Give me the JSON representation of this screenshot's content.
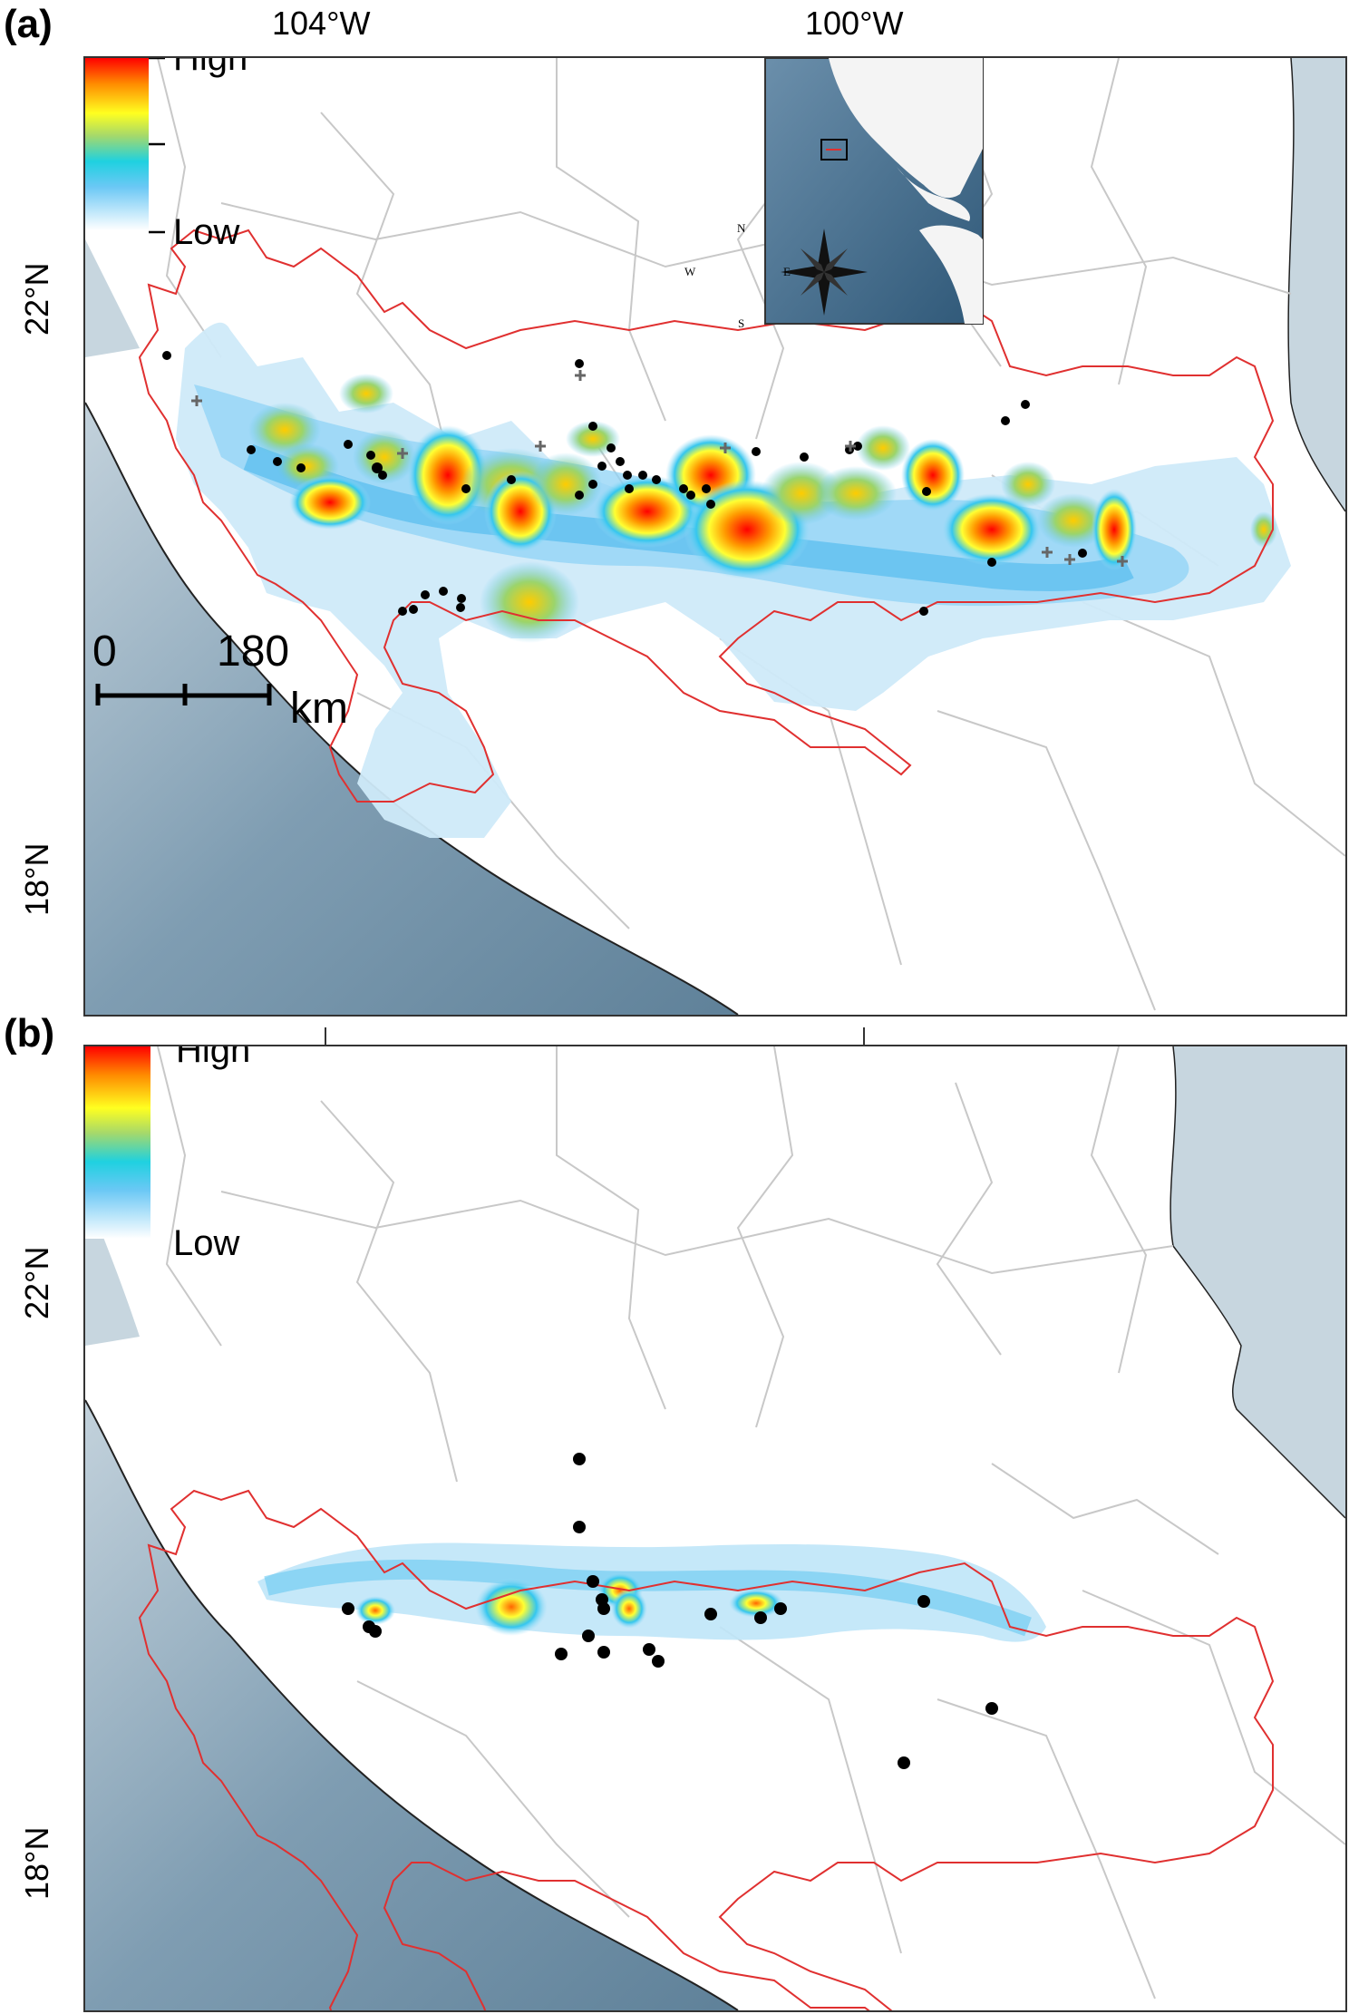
{
  "panels": [
    {
      "label": "(a)",
      "lon_labels": [
        "104°W",
        "100°W"
      ],
      "lat_labels": [
        "22°N",
        "18°N"
      ],
      "legend": {
        "high": "High",
        "low": "Low"
      },
      "scale_bar": {
        "start": "0",
        "end": "180",
        "unit": "km"
      },
      "inset": {
        "compass": {
          "n": "N",
          "s": "S",
          "e": "E",
          "w": "W"
        }
      }
    },
    {
      "label": "(b)",
      "lat_labels": [
        "22°N",
        "18°N"
      ],
      "legend": {
        "high": "High",
        "low": "Low"
      }
    }
  ],
  "colors": {
    "ocean": "#7d9bb0",
    "ocean_light": "#c9d6de",
    "boundary_red": "#e03030",
    "admin_grey": "#c8c8c8",
    "ramp": [
      "#ff0000",
      "#ff8c00",
      "#ffff00",
      "#9acd32",
      "#00ced1",
      "#87cefa",
      "#ffffff"
    ]
  }
}
